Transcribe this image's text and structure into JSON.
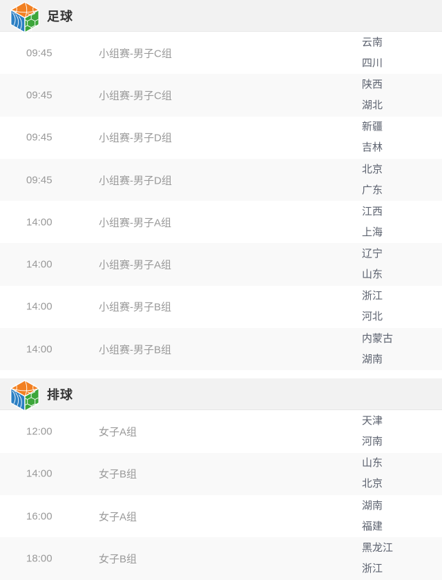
{
  "sections": [
    {
      "title": "足球",
      "icon": "sports-cube-icon",
      "rows": [
        {
          "time": "09:45",
          "group": "小组赛-男子C组",
          "teams": [
            "云南",
            "四川"
          ]
        },
        {
          "time": "09:45",
          "group": "小组赛-男子C组",
          "teams": [
            "陕西",
            "湖北"
          ]
        },
        {
          "time": "09:45",
          "group": "小组赛-男子D组",
          "teams": [
            "新疆",
            "吉林"
          ]
        },
        {
          "time": "09:45",
          "group": "小组赛-男子D组",
          "teams": [
            "北京",
            "广东"
          ]
        },
        {
          "time": "14:00",
          "group": "小组赛-男子A组",
          "teams": [
            "江西",
            "上海"
          ]
        },
        {
          "time": "14:00",
          "group": "小组赛-男子A组",
          "teams": [
            "辽宁",
            "山东"
          ]
        },
        {
          "time": "14:00",
          "group": "小组赛-男子B组",
          "teams": [
            "浙江",
            "河北"
          ]
        },
        {
          "time": "14:00",
          "group": "小组赛-男子B组",
          "teams": [
            "内蒙古",
            "湖南"
          ]
        }
      ]
    },
    {
      "title": "排球",
      "icon": "sports-cube-icon",
      "rows": [
        {
          "time": "12:00",
          "group": "女子A组",
          "teams": [
            "天津",
            "河南"
          ]
        },
        {
          "time": "14:00",
          "group": "女子B组",
          "teams": [
            "山东",
            "北京"
          ]
        },
        {
          "time": "16:00",
          "group": "女子A组",
          "teams": [
            "湖南",
            "福建"
          ]
        },
        {
          "time": "18:00",
          "group": "女子B组",
          "teams": [
            "黑龙江",
            "浙江"
          ]
        }
      ]
    }
  ],
  "colors": {
    "header_bg": "#f2f2f2",
    "header_border": "#e7e7e7",
    "row_bg": "#ffffff",
    "row_alt_bg": "#f9f9f9",
    "title_color": "#333333",
    "time_color": "#999999",
    "group_color": "#999999",
    "team_color": "#5b616e",
    "icon_orange": "#f28021",
    "icon_blue": "#2b7fc3",
    "icon_green": "#3ca63a"
  }
}
